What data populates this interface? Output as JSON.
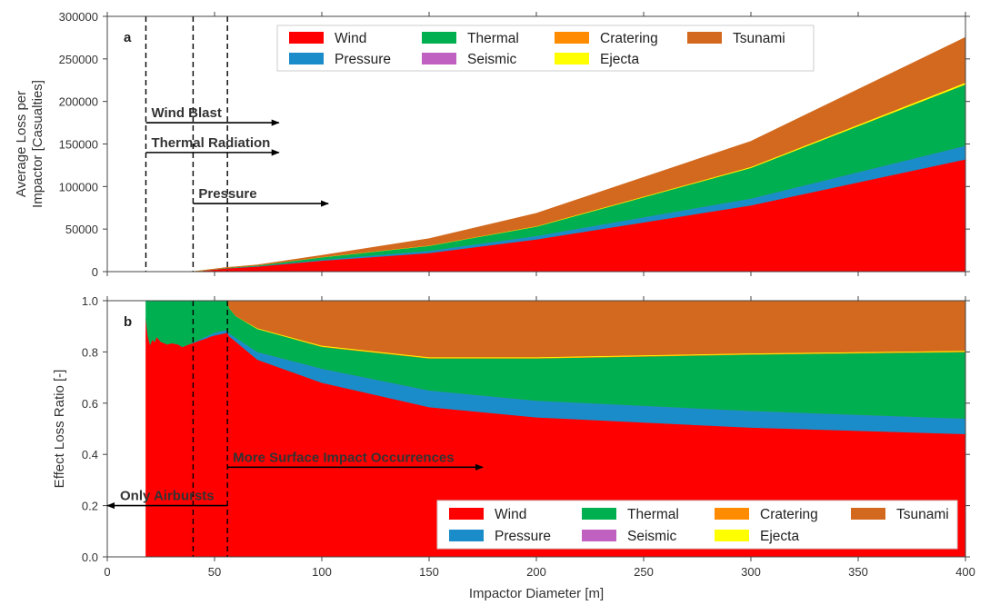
{
  "chart_data": [
    {
      "panel": "a",
      "type": "area",
      "stacked": true,
      "ylabel_lines": [
        "Average Loss per",
        "Impactor [Casualties]"
      ],
      "xlim": [
        0,
        400
      ],
      "ylim": [
        0,
        300000
      ],
      "x_ticks": [
        0,
        50,
        100,
        150,
        200,
        250,
        300,
        350,
        400
      ],
      "y_ticks": [
        0,
        50000,
        100000,
        150000,
        200000,
        250000,
        300000
      ],
      "y_tick_labels": [
        "0",
        "50000",
        "100000",
        "150000",
        "200000",
        "250000",
        "300000"
      ],
      "x": [
        18,
        40,
        56,
        70,
        100,
        150,
        200,
        300,
        400
      ],
      "series": [
        {
          "name": "Wind",
          "color": "#ff0000",
          "values": [
            0,
            0,
            4000,
            6000,
            13000,
            22000,
            38000,
            78000,
            132000
          ]
        },
        {
          "name": "Pressure",
          "color": "#1a8cc9",
          "values": [
            0,
            0,
            200,
            400,
            1000,
            2500,
            4000,
            8000,
            16000
          ]
        },
        {
          "name": "Seismic",
          "color": "#c060c0",
          "values": [
            0,
            0,
            0,
            0,
            0,
            0,
            0,
            0,
            0
          ]
        },
        {
          "name": "Thermal",
          "color": "#00b050",
          "values": [
            0,
            0,
            500,
            1000,
            3000,
            6000,
            11000,
            36000,
            72000
          ]
        },
        {
          "name": "Cratering",
          "color": "#ff8c00",
          "values": [
            0,
            0,
            0,
            0,
            0,
            0,
            100,
            200,
            300
          ]
        },
        {
          "name": "Ejecta",
          "color": "#ffff00",
          "values": [
            0,
            0,
            0,
            0,
            200,
            300,
            500,
            1000,
            2000
          ]
        },
        {
          "name": "Tsunami",
          "color": "#d2691e",
          "values": [
            0,
            0,
            300,
            600,
            2000,
            8000,
            15000,
            30000,
            53000
          ]
        }
      ],
      "legend": {
        "placement": "top-center",
        "entries": [
          "Wind",
          "Thermal",
          "Cratering",
          "Tsunami",
          "Pressure",
          "Seismic",
          "Ejecta"
        ]
      },
      "vlines": [
        18,
        40,
        56
      ],
      "annotations": [
        {
          "text": "Wind Blast",
          "x_from": 18,
          "x_to": 80,
          "y": 175000,
          "direction": "right"
        },
        {
          "text": "Thermal Radiation",
          "x_from": 18,
          "x_to": 80,
          "y": 140000,
          "direction": "right"
        },
        {
          "text": "Pressure",
          "x_from": 40,
          "x_to": 103,
          "y": 80000,
          "direction": "right"
        }
      ],
      "grid": false
    },
    {
      "panel": "b",
      "type": "area",
      "stacked": true,
      "ylabel_lines": [
        "Effect Loss Ratio [-]"
      ],
      "xlabel": "Impactor Diameter [m]",
      "xlim": [
        0,
        400
      ],
      "ylim": [
        0,
        1
      ],
      "x_ticks": [
        0,
        50,
        100,
        150,
        200,
        250,
        300,
        350,
        400
      ],
      "y_ticks": [
        0,
        0.2,
        0.4,
        0.6,
        0.8,
        1.0
      ],
      "y_tick_labels": [
        "0.0",
        "0.2",
        "0.4",
        "0.6",
        "0.8",
        "1.0"
      ],
      "x": [
        18,
        19,
        20,
        21,
        22,
        23,
        25,
        28,
        30,
        33,
        35,
        38,
        40,
        43,
        45,
        48,
        50,
        53,
        56,
        57,
        60,
        70,
        100,
        150,
        200,
        300,
        400
      ],
      "series": [
        {
          "name": "Wind",
          "color": "#ff0000",
          "values": [
            0.93,
            0.86,
            0.83,
            0.85,
            0.84,
            0.86,
            0.84,
            0.83,
            0.835,
            0.83,
            0.82,
            0.83,
            0.835,
            0.845,
            0.85,
            0.86,
            0.865,
            0.87,
            0.875,
            0.86,
            0.84,
            0.77,
            0.68,
            0.585,
            0.545,
            0.505,
            0.48
          ]
        },
        {
          "name": "Pressure",
          "color": "#1a8cc9",
          "values": [
            0,
            0,
            0,
            0,
            0,
            0,
            0,
            0,
            0,
            0,
            0,
            0,
            0.002,
            0.004,
            0.006,
            0.008,
            0.01,
            0.012,
            0.01,
            0.012,
            0.015,
            0.03,
            0.055,
            0.065,
            0.065,
            0.065,
            0.06
          ]
        },
        {
          "name": "Seismic",
          "color": "#c060c0",
          "values": [
            0,
            0,
            0,
            0,
            0,
            0,
            0,
            0,
            0,
            0,
            0,
            0,
            0,
            0,
            0,
            0,
            0,
            0,
            0,
            0,
            0,
            0,
            0,
            0,
            0,
            0,
            0
          ]
        },
        {
          "name": "Thermal",
          "color": "#00b050",
          "values": [
            0.07,
            0.14,
            0.17,
            0.15,
            0.16,
            0.14,
            0.16,
            0.17,
            0.165,
            0.17,
            0.18,
            0.17,
            0.163,
            0.151,
            0.144,
            0.132,
            0.125,
            0.118,
            0.115,
            0.098,
            0.085,
            0.09,
            0.085,
            0.125,
            0.165,
            0.22,
            0.26
          ]
        },
        {
          "name": "Cratering",
          "color": "#ff8c00",
          "values": [
            0,
            0,
            0,
            0,
            0,
            0,
            0,
            0,
            0,
            0,
            0,
            0,
            0,
            0,
            0,
            0,
            0,
            0,
            0,
            0,
            0,
            0,
            0.002,
            0.002,
            0.002,
            0.002,
            0.002
          ]
        },
        {
          "name": "Ejecta",
          "color": "#ffff00",
          "values": [
            0,
            0,
            0,
            0,
            0,
            0,
            0,
            0,
            0,
            0,
            0,
            0,
            0,
            0,
            0,
            0,
            0,
            0,
            0,
            0,
            0,
            0.003,
            0.003,
            0.003,
            0.003,
            0.003,
            0.003
          ]
        },
        {
          "name": "Tsunami",
          "color": "#d2691e",
          "values": [
            0,
            0,
            0,
            0,
            0,
            0,
            0,
            0,
            0,
            0,
            0,
            0,
            0,
            0,
            0,
            0,
            0,
            0,
            0,
            0.03,
            0.06,
            0.107,
            0.175,
            0.22,
            0.22,
            0.205,
            0.195
          ]
        }
      ],
      "legend": {
        "placement": "bottom-right",
        "entries": [
          "Wind",
          "Thermal",
          "Cratering",
          "Tsunami",
          "Pressure",
          "Seismic",
          "Ejecta"
        ]
      },
      "vlines": [
        40,
        56
      ],
      "annotations": [
        {
          "text": "More Surface Impact Occurrences",
          "x_from": 56,
          "x_to": 175,
          "y": 0.35,
          "direction": "right"
        },
        {
          "text": "Only Airbursts",
          "x_from": 56,
          "x_to": 0,
          "y": 0.2,
          "direction": "left"
        }
      ],
      "grid": false
    }
  ]
}
